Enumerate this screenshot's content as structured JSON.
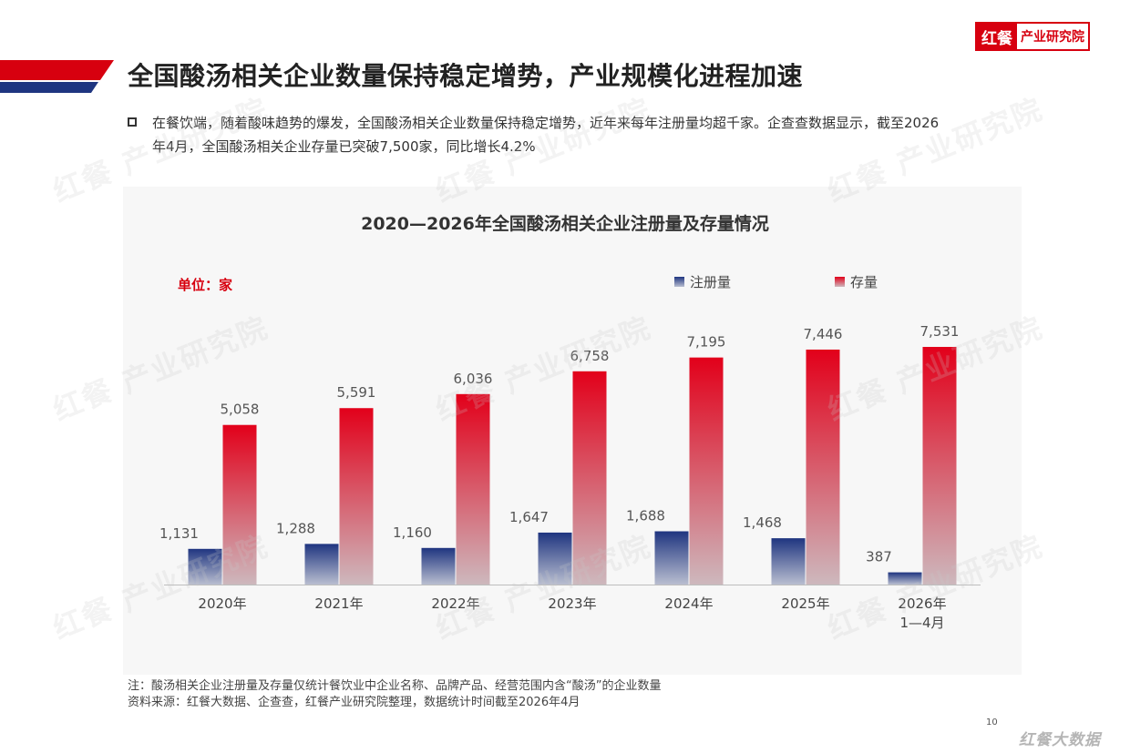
{
  "header": {
    "logo_mark": "红餐",
    "logo_text": "产业研究院",
    "title": "全国酸汤相关企业数量保持稳定增势，产业规模化进程加速"
  },
  "body": {
    "paragraph_line1": "在餐饮端，随着酸味趋势的爆发，全国酸汤相关企业数量保持稳定增势，近年来每年注册量均超千家。企查查数据显示，截至2026",
    "paragraph_line2": "年4月，全国酸汤相关企业存量已突破7,500家，同比增长4.2%"
  },
  "chart_data": {
    "type": "bar",
    "title": "2020—2026年全国酸汤相关企业注册量及存量情况",
    "unit": "单位：家",
    "categories": [
      "2020年",
      "2021年",
      "2022年",
      "2023年",
      "2024年",
      "2025年",
      "2026年\n1—4月"
    ],
    "series": [
      {
        "name": "注册量",
        "values": [
          1131,
          1288,
          1160,
          1647,
          1688,
          1468,
          387
        ],
        "labels": [
          "1,131",
          "1,288",
          "1,160",
          "1,647",
          "1,688",
          "1,468",
          "387"
        ],
        "color_top": "#1f3580",
        "color_bottom": "#b9bed0"
      },
      {
        "name": "存量",
        "values": [
          5058,
          5591,
          6036,
          6758,
          7195,
          7446,
          7531
        ],
        "labels": [
          "5,058",
          "5,591",
          "6,036",
          "6,758",
          "7,195",
          "7,446",
          "7,531"
        ],
        "color_top": "#e2001a",
        "color_bottom": "#cdb8bd"
      }
    ],
    "ylim": [
      0,
      7531
    ],
    "legend_position": "top-right",
    "grid": false
  },
  "footer": {
    "note": "注：酸汤相关企业注册量及存量仅统计餐饮业中企业名称、品牌产品、经营范围内含“酸汤”的企业数量",
    "source": "资料来源：红餐大数据、企查查，红餐产业研究院整理，数据统计时间截至2026年4月",
    "page_number": "10",
    "brand_watermark": "红餐大数据"
  },
  "watermark": {
    "text": "红餐 产业研究院"
  },
  "colors": {
    "accent_red": "#d7000f",
    "accent_blue": "#1f3580"
  }
}
